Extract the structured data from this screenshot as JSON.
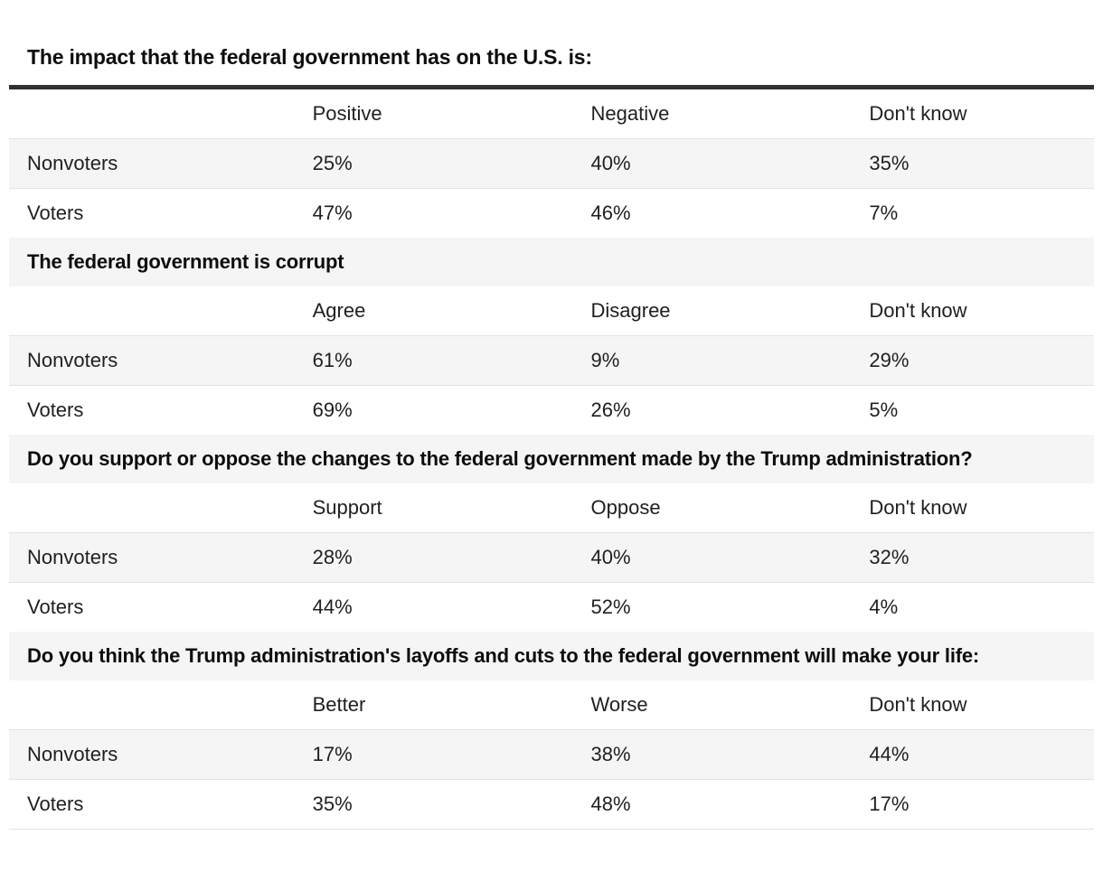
{
  "colors": {
    "background": "#ffffff",
    "row_shade": "#f5f5f5",
    "row_border": "#e3e3e3",
    "title_rule": "#303030",
    "text": "#1f1f1f"
  },
  "main_title": "The impact that the federal government has on the U.S. is:",
  "sections": [
    {
      "heading": "",
      "columns": [
        "Positive",
        "Negative",
        "Don't know"
      ],
      "rows": [
        {
          "label": "Nonvoters",
          "values": [
            "25%",
            "40%",
            "35%"
          ]
        },
        {
          "label": "Voters",
          "values": [
            "47%",
            "46%",
            "7%"
          ]
        }
      ]
    },
    {
      "heading": "The federal government is corrupt",
      "columns": [
        "Agree",
        "Disagree",
        "Don't know"
      ],
      "rows": [
        {
          "label": "Nonvoters",
          "values": [
            "61%",
            "9%",
            "29%"
          ]
        },
        {
          "label": "Voters",
          "values": [
            "69%",
            "26%",
            "5%"
          ]
        }
      ]
    },
    {
      "heading": "Do you support or oppose the changes to the federal government made by the Trump administration?",
      "columns": [
        "Support",
        "Oppose",
        "Don't know"
      ],
      "rows": [
        {
          "label": "Nonvoters",
          "values": [
            "28%",
            "40%",
            "32%"
          ]
        },
        {
          "label": "Voters",
          "values": [
            "44%",
            "52%",
            "4%"
          ]
        }
      ]
    },
    {
      "heading": "Do you think the Trump administration's layoffs and cuts to the federal government will make your life:",
      "columns": [
        "Better",
        "Worse",
        "Don't know"
      ],
      "rows": [
        {
          "label": "Nonvoters",
          "values": [
            "17%",
            "38%",
            "44%"
          ]
        },
        {
          "label": "Voters",
          "values": [
            "35%",
            "48%",
            "17%"
          ]
        }
      ]
    }
  ],
  "chart_data": [
    {
      "type": "table",
      "title": "The impact that the federal government has on the U.S. is:",
      "categories": [
        "Positive",
        "Negative",
        "Don't know"
      ],
      "series": [
        {
          "name": "Nonvoters",
          "values": [
            25,
            40,
            35
          ]
        },
        {
          "name": "Voters",
          "values": [
            47,
            46,
            7
          ]
        }
      ]
    },
    {
      "type": "table",
      "title": "The federal government is corrupt",
      "categories": [
        "Agree",
        "Disagree",
        "Don't know"
      ],
      "series": [
        {
          "name": "Nonvoters",
          "values": [
            61,
            9,
            29
          ]
        },
        {
          "name": "Voters",
          "values": [
            69,
            26,
            5
          ]
        }
      ]
    },
    {
      "type": "table",
      "title": "Do you support or oppose the changes to the federal government made by the Trump administration?",
      "categories": [
        "Support",
        "Oppose",
        "Don't know"
      ],
      "series": [
        {
          "name": "Nonvoters",
          "values": [
            28,
            40,
            32
          ]
        },
        {
          "name": "Voters",
          "values": [
            44,
            52,
            4
          ]
        }
      ]
    },
    {
      "type": "table",
      "title": "Do you think the Trump administration's layoffs and cuts to the federal government will make your life:",
      "categories": [
        "Better",
        "Worse",
        "Don't know"
      ],
      "series": [
        {
          "name": "Nonvoters",
          "values": [
            17,
            38,
            44
          ]
        },
        {
          "name": "Voters",
          "values": [
            35,
            48,
            17
          ]
        }
      ]
    }
  ]
}
